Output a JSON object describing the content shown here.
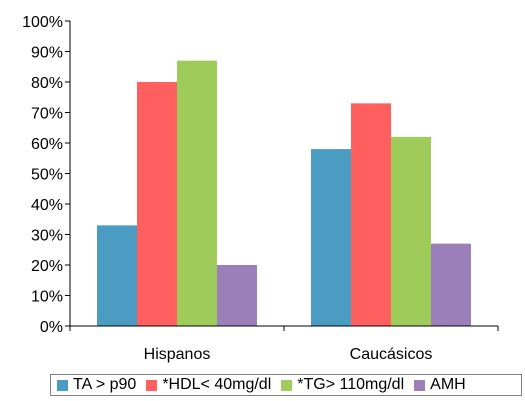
{
  "chart_data": {
    "type": "bar",
    "categories": [
      "Hispanos",
      "Caucásicos"
    ],
    "series": [
      {
        "name": "TA > p90",
        "values": [
          33,
          58
        ],
        "color": "#4A9CC2"
      },
      {
        "name": "*HDL< 40mg/dl",
        "values": [
          80,
          73
        ],
        "color": "#FF5F5F"
      },
      {
        "name": "*TG> 110mg/dl",
        "values": [
          87,
          62
        ],
        "color": "#9ECB5A"
      },
      {
        "name": "AMH",
        "values": [
          20,
          27
        ],
        "color": "#9B7FBB"
      }
    ],
    "ylim": [
      0,
      100
    ],
    "yticks": [
      "0%",
      "10%",
      "20%",
      "30%",
      "40%",
      "50%",
      "60%",
      "70%",
      "80%",
      "90%",
      "100%"
    ],
    "grid": false,
    "legend_position": "bottom"
  }
}
